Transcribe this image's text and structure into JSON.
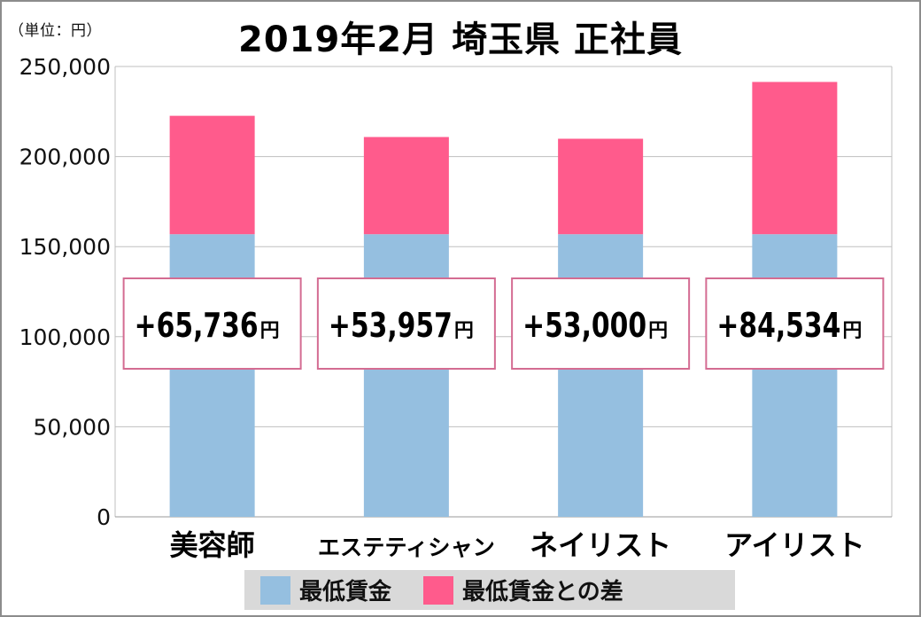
{
  "unit_label": "（単位：円）",
  "title": "2019年2月 埼玉県 正社員",
  "colors": {
    "base": "#95bfe0",
    "diff": "#ff5b8c",
    "label_border": "#d46c92",
    "grid": "#bfbfbf",
    "legend_bg": "#d9d9d9"
  },
  "chart_data": {
    "type": "bar",
    "stacked": true,
    "title": "2019年2月 埼玉県 正社員",
    "categories": [
      "美容師",
      "エステティシャン",
      "ネイリスト",
      "アイリスト"
    ],
    "series": [
      {
        "name": "最低賃金",
        "values": [
          156888,
          156888,
          156888,
          156888
        ]
      },
      {
        "name": "最低賃金との差",
        "values": [
          65736,
          53957,
          53000,
          84534
        ]
      }
    ],
    "ylim": [
      0,
      250000
    ],
    "yticks": [
      0,
      50000,
      100000,
      150000,
      200000,
      250000
    ],
    "ytick_labels": [
      "0",
      "50,000",
      "100,000",
      "150,000",
      "200,000",
      "250,000"
    ],
    "data_labels": [
      {
        "main": "+65,736",
        "unit": "円"
      },
      {
        "main": "+53,957",
        "unit": "円"
      },
      {
        "main": "+53,000",
        "unit": "円"
      },
      {
        "main": "+84,534",
        "unit": "円"
      }
    ],
    "grid": true,
    "legend_position": "bottom"
  }
}
